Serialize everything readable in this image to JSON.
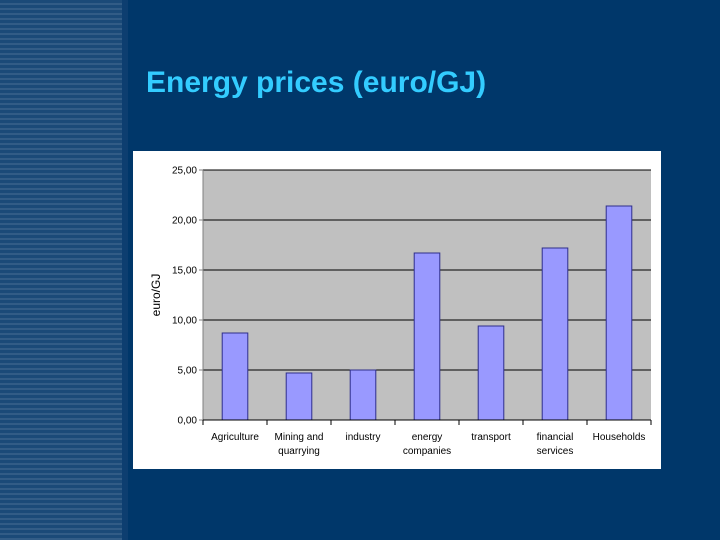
{
  "slide": {
    "title": "Energy prices (euro/GJ)"
  },
  "chart_data": {
    "type": "bar",
    "title": "",
    "ylabel": "euro/GJ",
    "xlabel": "",
    "ylim": [
      0,
      25
    ],
    "yticks": [
      "0,00",
      "5,00",
      "10,00",
      "15,00",
      "20,00",
      "25,00"
    ],
    "categories": [
      [
        "Agriculture"
      ],
      [
        "Mining and",
        "quarrying"
      ],
      [
        "industry"
      ],
      [
        "energy",
        "companies"
      ],
      [
        "transport"
      ],
      [
        "financial",
        "services"
      ],
      [
        "Households"
      ]
    ],
    "values": [
      8.7,
      4.7,
      5.0,
      16.7,
      9.4,
      17.2,
      21.4
    ],
    "grid": "major horizontal lines only",
    "colors": {
      "plot_area": "#c0c0c0",
      "bar_fill": "#9999ff",
      "bar_stroke": "#2e2e8a",
      "title": "#33ccff",
      "background": "#00376a"
    }
  }
}
